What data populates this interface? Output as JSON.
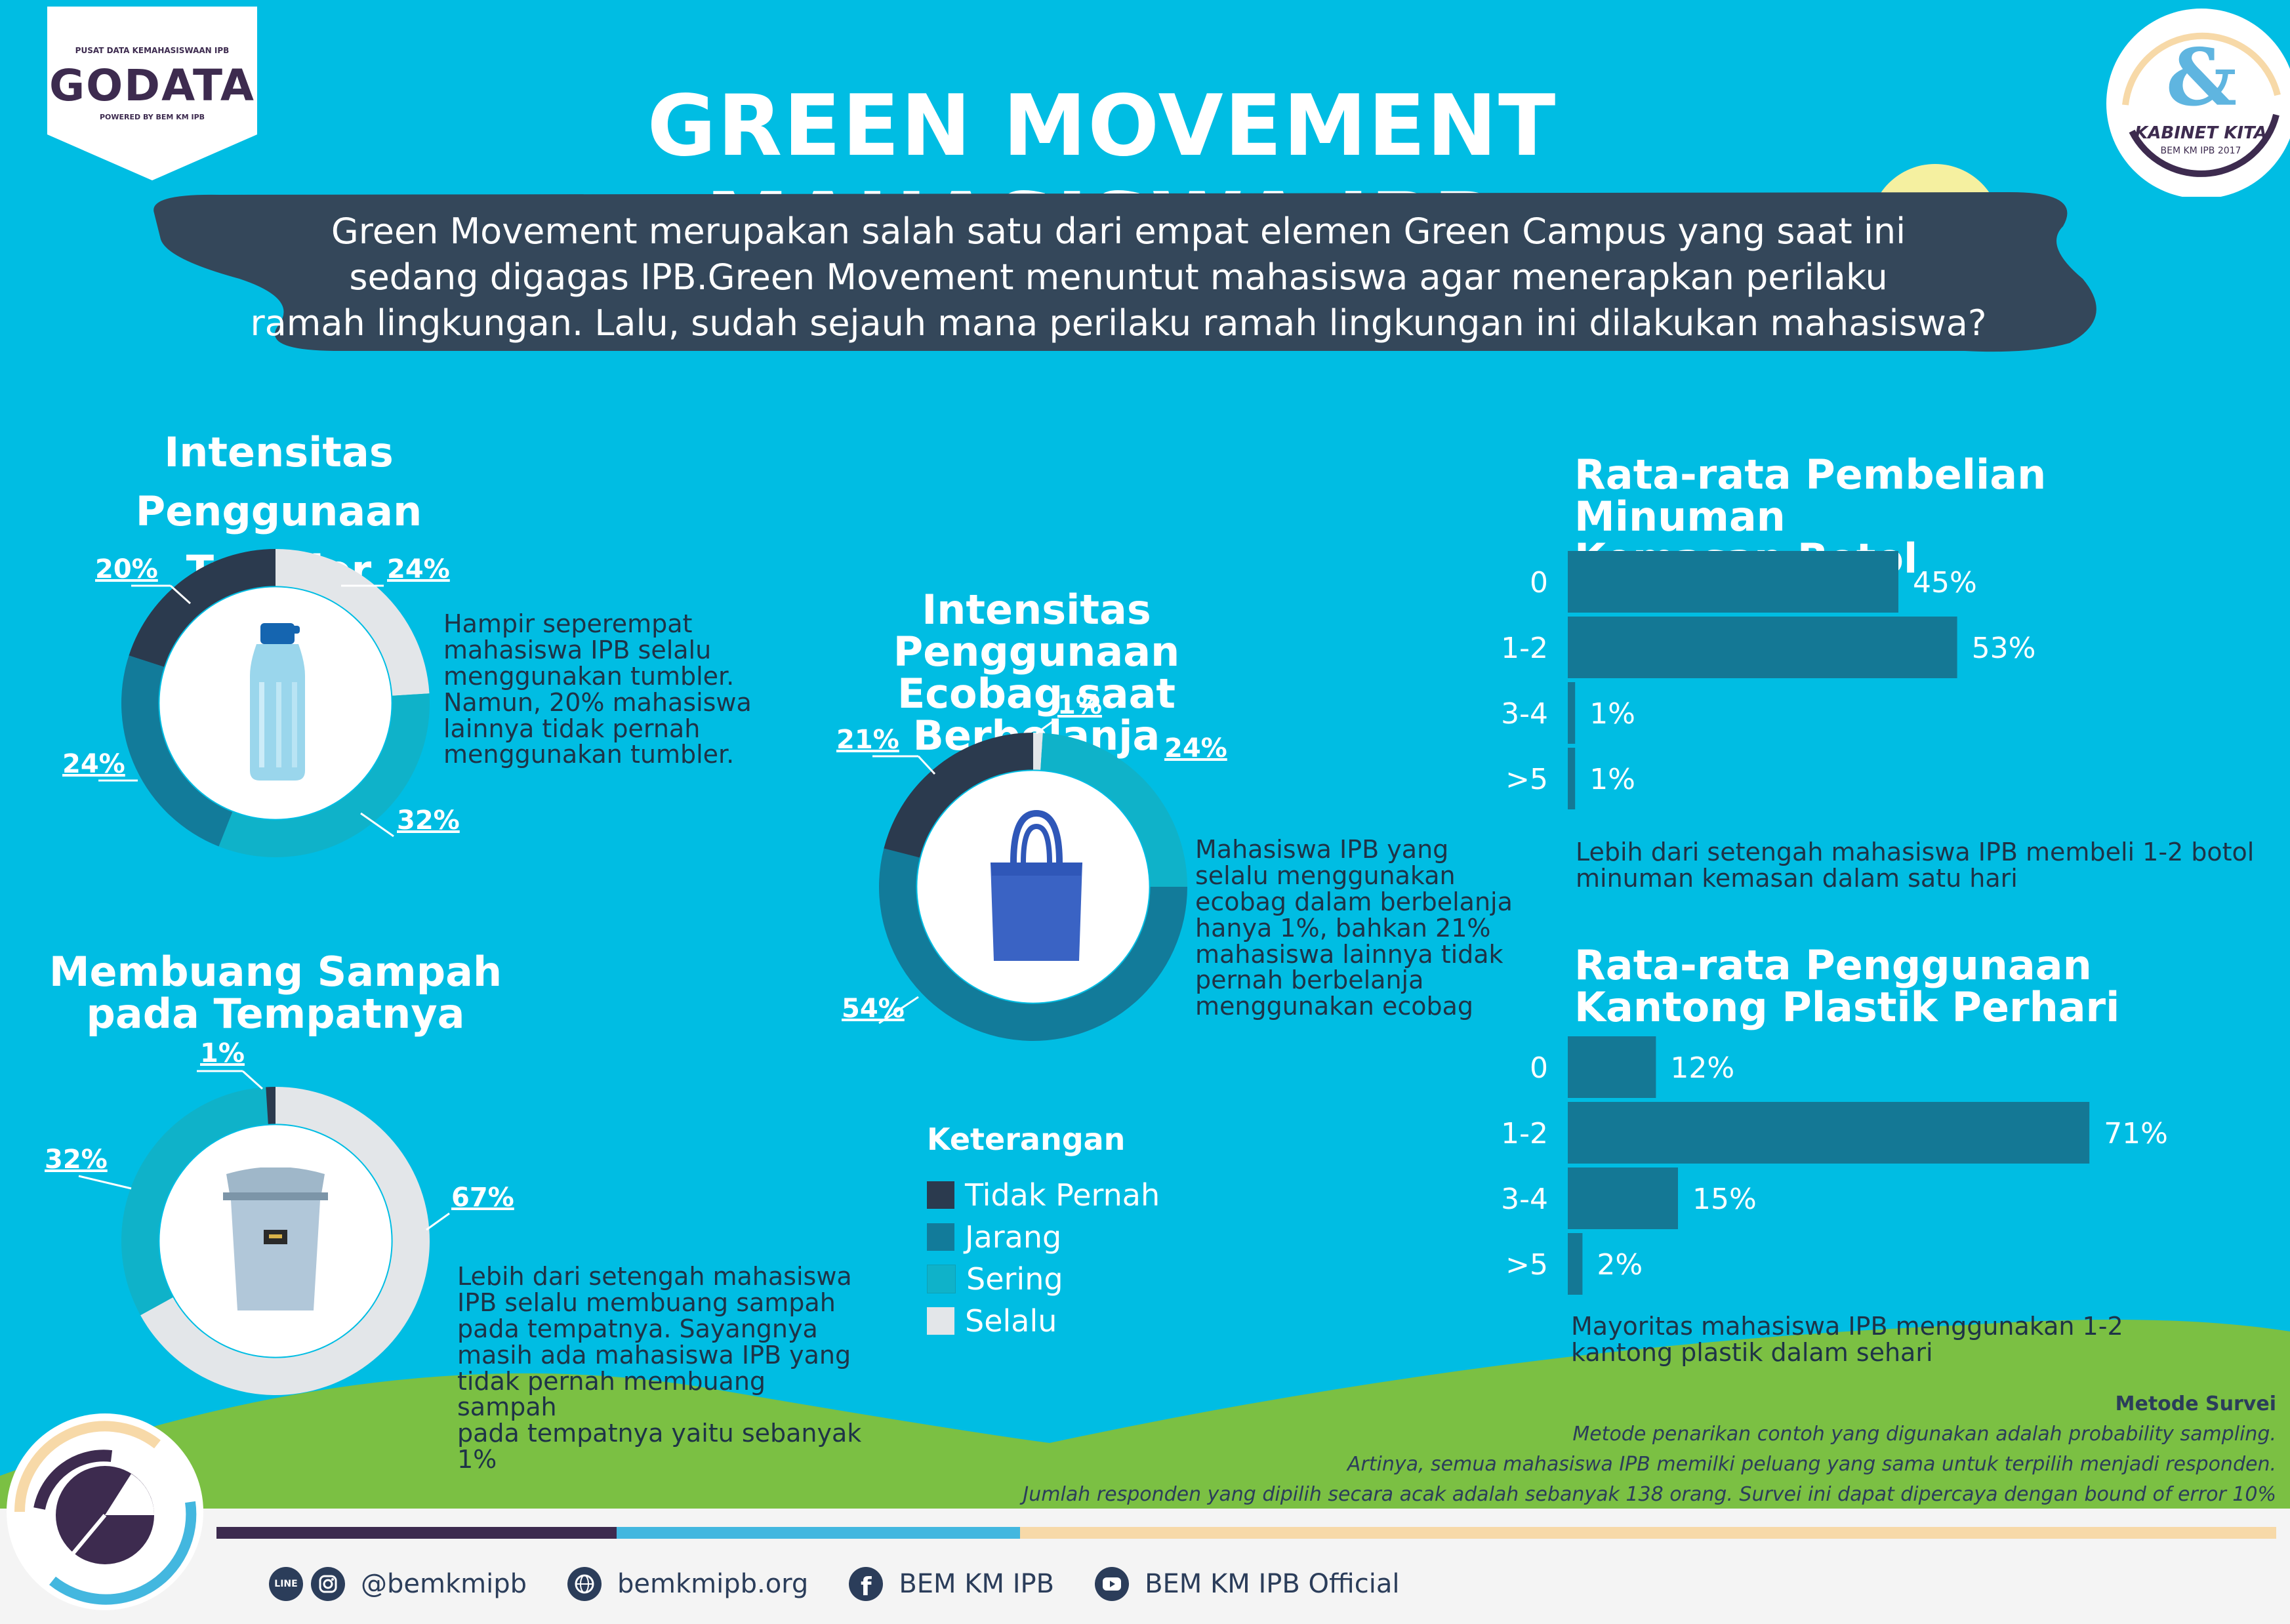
{
  "header": {
    "logo_small": "PUSAT DATA KEMAHASISWAAN IPB",
    "logo_main": "GODATA",
    "logo_sub": "POWERED BY BEM KM IPB",
    "title": "GREEN MOVEMENT MAHASISWA IPB",
    "badge_title": "KABINET KITA",
    "badge_sub": "BEM KM IPB 2017",
    "intro_lines": [
      "Green Movement merupakan salah satu dari empat elemen Green Campus yang saat ini",
      "sedang digagas IPB.Green Movement menuntut mahasiswa agar menerapkan perilaku",
      "ramah lingkungan. Lalu, sudah sejauh mana perilaku ramah lingkungan ini dilakukan mahasiswa?"
    ]
  },
  "colors": {
    "background": "#00bde3",
    "tidak_pernah": "#2b3a4e",
    "jarang": "#127b9a",
    "sering": "#0fb2c9",
    "selalu": "#e3e6e9",
    "bar": "#147895",
    "grass": "#7bc043",
    "dark_purple": "#3d2b4f"
  },
  "legend": {
    "title": "Keterangan",
    "items": [
      "Tidak Pernah",
      "Jarang",
      "Sering",
      "Selalu"
    ]
  },
  "tumbler": {
    "title_lines": [
      "Intensitas Penggunaan",
      "Tumbler"
    ],
    "desc_lines": [
      "Hampir seperempat",
      "mahasiswa IPB selalu",
      "menggunakan tumbler.",
      "Namun, 20% mahasiswa",
      "lainnya tidak pernah",
      "menggunakan tumbler."
    ]
  },
  "ecobag": {
    "title_lines": [
      "Intensitas Penggunaan",
      "Ecobag saat Berbelanja"
    ],
    "desc_lines": [
      "Mahasiswa IPB yang",
      "selalu menggunakan",
      "ecobag dalam berbelanja",
      "hanya 1%, bahkan 21%",
      "mahasiswa lainnya tidak",
      "pernah berbelanja",
      "menggunakan ecobag"
    ]
  },
  "sampah": {
    "title_lines": [
      "Membuang Sampah",
      "pada Tempatnya"
    ],
    "desc_lines": [
      "Lebih dari setengah mahasiswa",
      "IPB selalu membuang sampah",
      "pada tempatnya. Sayangnya",
      "masih ada mahasiswa IPB yang",
      "tidak pernah membuang sampah",
      "pada tempatnya yaitu sebanyak",
      "1%"
    ]
  },
  "botol": {
    "title_lines": [
      "Rata-rata Pembelian Minuman",
      "Kemasan Botol"
    ],
    "desc_lines": [
      "Lebih dari setengah mahasiswa IPB membeli 1-2 botol",
      "minuman kemasan dalam satu hari"
    ]
  },
  "plastik": {
    "title_lines": [
      "Rata-rata Penggunaan",
      "Kantong Plastik Perhari"
    ],
    "desc_lines": [
      "Mayoritas mahasiswa IPB menggunakan 1-2",
      "kantong plastik dalam sehari"
    ]
  },
  "chart_data": [
    {
      "type": "pie",
      "categories": [
        "Tidak Pernah",
        "Jarang",
        "Sering",
        "Selalu"
      ],
      "values": [
        20,
        24,
        32,
        24
      ],
      "labels": [
        "20%",
        "24%",
        "32%",
        "24%"
      ],
      "title": "Intensitas Penggunaan Tumbler"
    },
    {
      "type": "pie",
      "categories": [
        "Tidak Pernah",
        "Jarang",
        "Sering",
        "Selalu"
      ],
      "values": [
        21,
        54,
        24,
        1
      ],
      "labels": [
        "21%",
        "54%",
        "24%",
        "1%"
      ],
      "title": "Intensitas Penggunaan Ecobag saat Berbelanja"
    },
    {
      "type": "pie",
      "categories": [
        "Tidak Pernah",
        "Sering",
        "Selalu"
      ],
      "values": [
        1,
        32,
        67
      ],
      "labels": [
        "1%",
        "32%",
        "67%"
      ],
      "title": "Membuang Sampah pada Tempatnya"
    },
    {
      "type": "bar",
      "orientation": "horizontal",
      "categories": [
        "0",
        "1-2",
        "3-4",
        ">5"
      ],
      "values": [
        45,
        53,
        1,
        1
      ],
      "labels": [
        "45%",
        "53%",
        "1%",
        "1%"
      ],
      "title": "Rata-rata Pembelian Minuman Kemasan Botol"
    },
    {
      "type": "bar",
      "orientation": "horizontal",
      "categories": [
        "0",
        "1-2",
        "3-4",
        ">5"
      ],
      "values": [
        12,
        71,
        15,
        2
      ],
      "labels": [
        "12%",
        "71%",
        "15%",
        "2%"
      ],
      "title": "Rata-rata Penggunaan Kantong Plastik Perhari"
    }
  ],
  "survey": {
    "title": "Metode Survei",
    "lines": [
      "Metode penarikan contoh yang digunakan adalah probability sampling.",
      "Artinya, semua mahasiswa IPB memilki peluang yang sama untuk terpilih menjadi responden.",
      "Jumlah responden yang dipilih secara acak adalah sebanyak 138 orang. Survei ini dapat dipercaya dengan bound of error 10%"
    ]
  },
  "footer": {
    "line_icon": "LINE",
    "instagram": "@bemkmipb",
    "website": "bemkmipb.org",
    "facebook": "BEM KM IPB",
    "youtube": "BEM KM IPB Official"
  }
}
